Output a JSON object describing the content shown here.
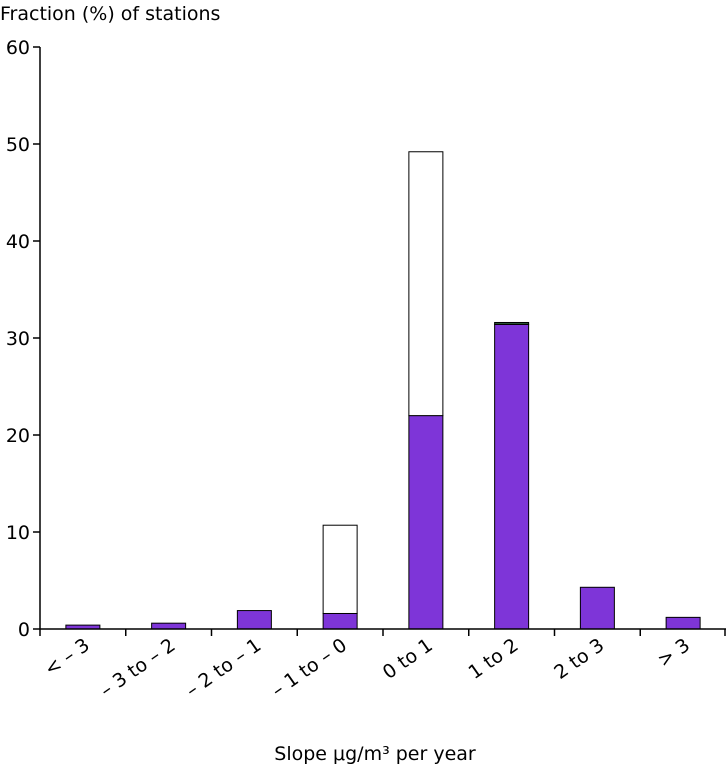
{
  "chart_data": {
    "type": "stacked_bar",
    "y_axis_label": "Fraction (%) of stations",
    "x_axis_label": "Slope μg/m³ per year",
    "categories": [
      "< – 3",
      "– 3 to – 2",
      "– 2 to – 1",
      "– 1 to – 0",
      "0 to 1",
      "1 to 2",
      "2 to 3",
      "> 3"
    ],
    "series": [
      {
        "color": "#7e35d8",
        "values": [
          0.4,
          0.6,
          1.9,
          1.6,
          22.0,
          31.4,
          4.3,
          1.2
        ]
      },
      {
        "color": "#2e5a3a",
        "values": [
          0,
          0,
          0,
          0,
          0,
          0.2,
          0,
          0
        ]
      },
      {
        "color": "#ffffff",
        "values": [
          0,
          0,
          0,
          9.1,
          27.2,
          0,
          0,
          0
        ]
      }
    ],
    "ylim": [
      0,
      60
    ],
    "yticks": [
      0,
      10,
      20,
      30,
      40,
      50,
      60
    ]
  }
}
